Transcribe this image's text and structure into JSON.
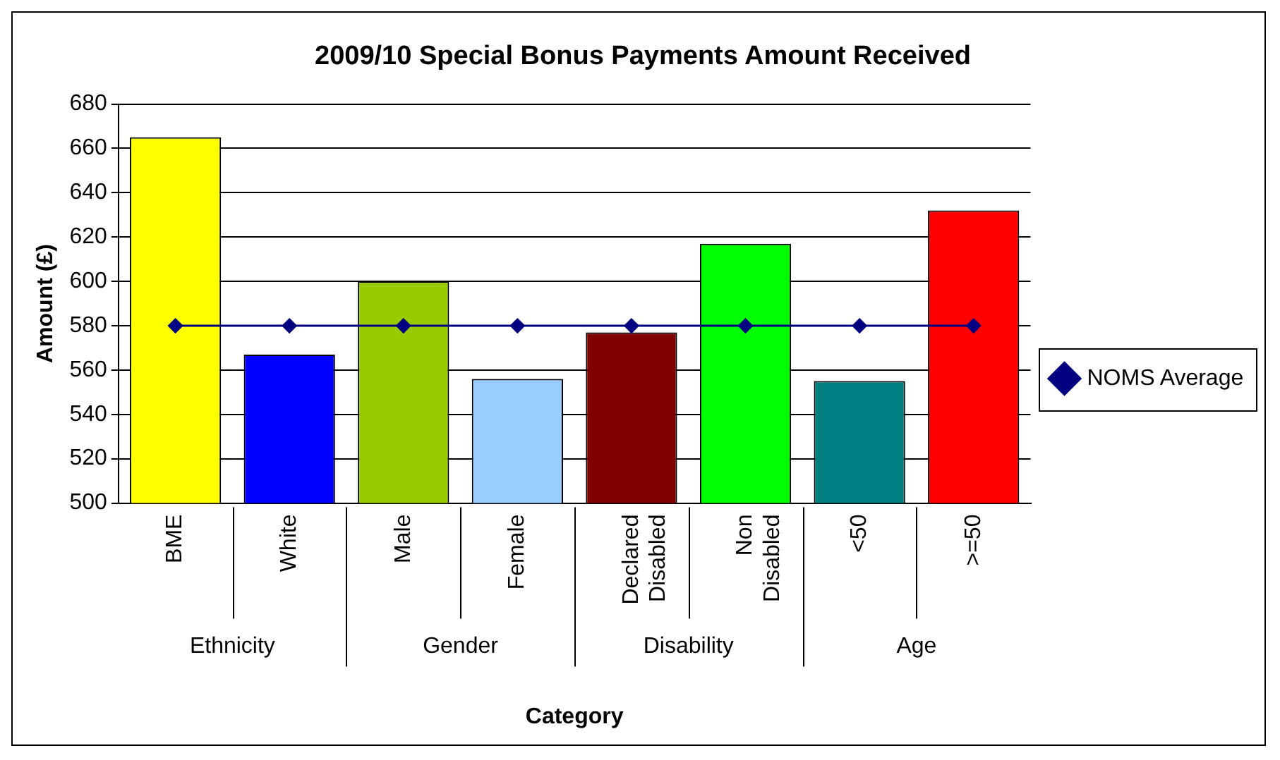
{
  "chart_data": {
    "type": "bar",
    "title": "2009/10 Special Bonus Payments Amount Received",
    "xlabel": "Category",
    "ylabel": "Amount (£)",
    "categories": [
      "BME",
      "White",
      "Male",
      "Female",
      "Declared Disabled",
      "Non Disabled",
      "<50",
      ">=50"
    ],
    "annotations": [
      "Ethnicity",
      "Gender",
      "Disability",
      "Age"
    ],
    "series": [
      {
        "colors": [
          "#ffff00",
          "#0000ff",
          "#99cc00",
          "#99ccff",
          "#800000",
          "#00ff00",
          "#008080",
          "#ff0000"
        ],
        "values": [
          665,
          567,
          600,
          556,
          577,
          617,
          555,
          632
        ]
      },
      {
        "type": "line",
        "name": "NOMS Average",
        "color": "#000080",
        "marker": "diamond",
        "values": [
          580,
          580,
          580,
          580,
          580,
          580,
          580,
          580
        ]
      }
    ],
    "ylim": [
      500,
      680
    ],
    "yticks": [
      500,
      520,
      540,
      560,
      580,
      600,
      620,
      640,
      660,
      680
    ],
    "grid": "y",
    "legend": "right"
  }
}
